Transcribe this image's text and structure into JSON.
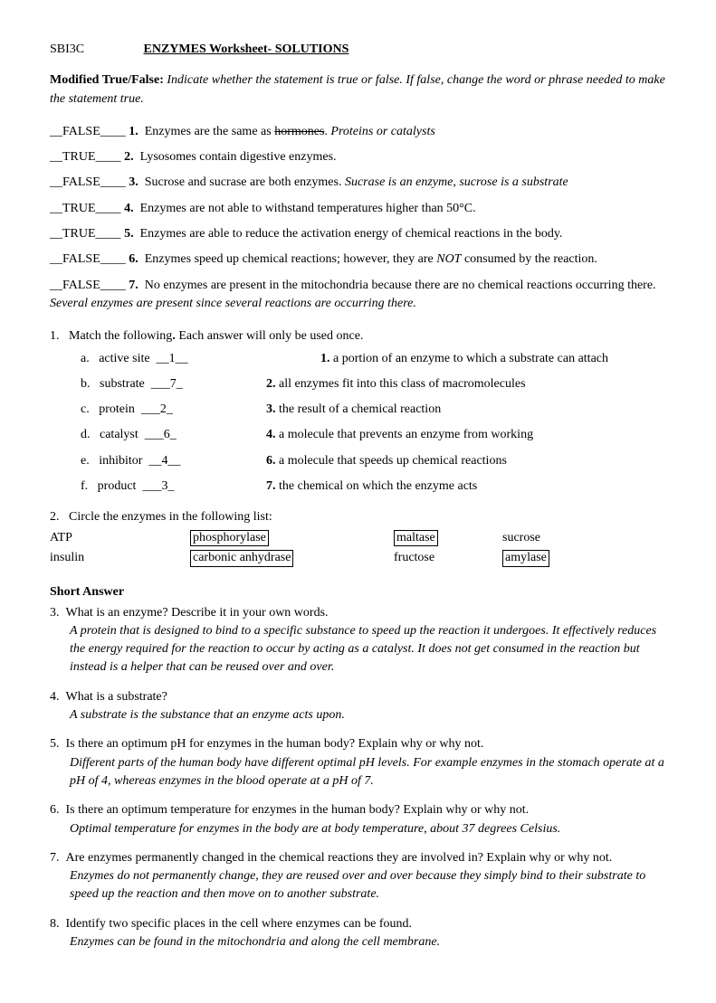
{
  "header": {
    "course": "SBI3C",
    "title": "ENZYMES Worksheet- SOLUTIONS"
  },
  "instructions": {
    "label": "Modified True/False:",
    "text": " Indicate whether the statement is true or false.  If false, change the word or phrase needed to make the statement true."
  },
  "tf": [
    {
      "answer": "__FALSE____",
      "num": "1.",
      "pre": "Enzymes are the same as ",
      "strike": "hormones",
      "post": ".  ",
      "ital": "Proteins or catalysts"
    },
    {
      "answer": "__TRUE____",
      "num": "2.",
      "text": "Lysosomes contain digestive enzymes."
    },
    {
      "answer": "__FALSE____",
      "num": "3.",
      "text": "Sucrose and sucrase are both enzymes. ",
      "ital": "Sucrase is an enzyme, sucrose is a substrate"
    },
    {
      "answer": "__TRUE____",
      "num": "4.",
      "text": "Enzymes are not able to withstand temperatures higher than 50°C."
    },
    {
      "answer": "__TRUE____",
      "num": "5.",
      "text": "Enzymes are able to reduce the activation energy of chemical reactions in the body."
    },
    {
      "answer": "__FALSE____",
      "num": "6.",
      "pre": "Enzymes speed up chemical reactions; however, they are ",
      "emital": "NOT",
      "post2": " consumed by the reaction."
    }
  ],
  "tf7": {
    "answer": "__FALSE____",
    "num": "7.",
    "line1": "No enzymes are present in the mitochondria because there are no chemical reactions occurring there.  ",
    "ital": "Several enzymes are present since several reactions are occurring there."
  },
  "match": {
    "intro_num": "1.",
    "intro_text": "Match the following",
    "intro_post": "   Each answer will only be used once.",
    "rows": [
      {
        "l": "a.",
        "term": "active site",
        "ans": "__1__",
        "rn": "1.",
        "def": "a portion of an enzyme to which a substrate can attach"
      },
      {
        "l": "b.",
        "term": "substrate",
        "ans": "___7_",
        "rn": "2.",
        "def": "all enzymes fit into this class of macromolecules"
      },
      {
        "l": "c.",
        "term": "protein",
        "ans": "___2_",
        "rn": "3.",
        "def": "the result of a chemical reaction"
      },
      {
        "l": "d.",
        "term": "catalyst",
        "ans": "___6_",
        "rn": "4.",
        "def": "a molecule that prevents an enzyme from working"
      },
      {
        "l": "e.",
        "term": "inhibitor",
        "ans": "__4__",
        "rn": "6.",
        "def": "a molecule that speeds up chemical reactions"
      },
      {
        "l": "f.",
        "term": "product",
        "ans": "___3_",
        "rn": "7.",
        "def": "the chemical on which the enzyme acts"
      }
    ]
  },
  "q2": {
    "num": "2.",
    "text": "Circle the enzymes in the following list:",
    "row1": {
      "c1": "ATP",
      "c2": "phosphorylase",
      "c3": "maltase",
      "c4": "sucrose"
    },
    "row2": {
      "c1": "insulin",
      "c2": "carbonic anhydrase",
      "c3": "fructose",
      "c4": "amylase"
    }
  },
  "sa": {
    "header": "Short Answer",
    "items": [
      {
        "n": "3.",
        "q": "What is an enzyme?  Describe it in your own words.",
        "a": "A protein that is designed to bind to a specific substance to speed up the reaction it undergoes.  It effectively reduces the energy required for the reaction to occur by acting as a catalyst.  It does not get consumed in the reaction but instead is a helper that can be reused over and over."
      },
      {
        "n": "4.",
        "q": "What is a substrate?",
        "a": "A substrate is the substance that an enzyme acts upon."
      },
      {
        "n": "5.",
        "q": "Is there an optimum pH for enzymes in the human body?  Explain why or why not.",
        "a": "Different parts of the human body have different optimal pH levels.  For example enzymes in the stomach operate at a pH of 4, whereas enzymes in the blood operate at a pH of 7."
      },
      {
        "n": "6.",
        "q": "Is there an optimum temperature for enzymes in the human body?  Explain why or why not.",
        "a": "Optimal temperature for enzymes in the body are at body temperature, about 37 degrees Celsius."
      },
      {
        "n": "7.",
        "q": "Are enzymes permanently changed in the chemical reactions they are involved in?  Explain why or why not.",
        "a": "Enzymes do not permanently change, they are reused over and over because they simply bind to their substrate to speed up the reaction and then move on to another substrate."
      },
      {
        "n": "8.",
        "q": "Identify two specific places in the cell where enzymes can be found.",
        "a": "Enzymes can be found in the mitochondria and along the cell membrane."
      }
    ]
  }
}
